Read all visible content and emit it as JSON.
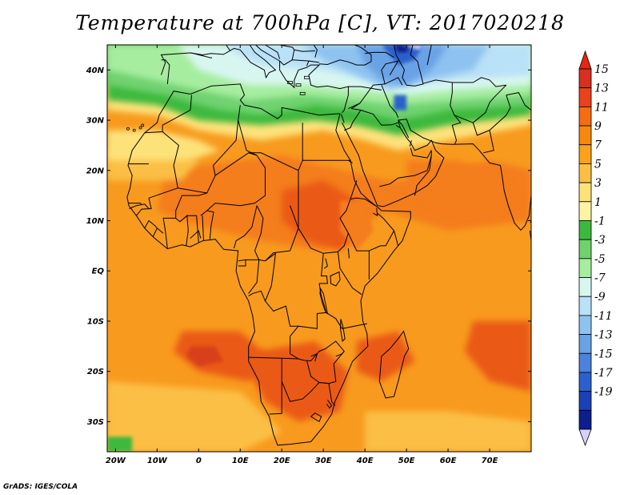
{
  "title": "Temperature at 700hPa [C], VT: 2017020218",
  "credit": "GrADS: IGES/COLA",
  "map": {
    "projection": "lat-lon",
    "lon_range": [
      -22,
      80
    ],
    "lat_range": [
      -36,
      45
    ],
    "lat_labels": [
      {
        "lat": 40,
        "text": "40N"
      },
      {
        "lat": 30,
        "text": "30N"
      },
      {
        "lat": 20,
        "text": "20N"
      },
      {
        "lat": 10,
        "text": "10N"
      },
      {
        "lat": 0,
        "text": "EQ"
      },
      {
        "lat": -10,
        "text": "10S"
      },
      {
        "lat": -20,
        "text": "20S"
      },
      {
        "lat": -30,
        "text": "30S"
      }
    ],
    "lon_labels": [
      {
        "lon": -20,
        "text": "20W"
      },
      {
        "lon": -10,
        "text": "10W"
      },
      {
        "lon": 0,
        "text": "0"
      },
      {
        "lon": 10,
        "text": "10E"
      },
      {
        "lon": 20,
        "text": "20E"
      },
      {
        "lon": 30,
        "text": "30E"
      },
      {
        "lon": 40,
        "text": "40E"
      },
      {
        "lon": 50,
        "text": "50E"
      },
      {
        "lon": 60,
        "text": "60E"
      },
      {
        "lon": 70,
        "text": "70E"
      }
    ]
  },
  "colorbar": {
    "labels": [
      "15",
      "13",
      "11",
      "9",
      "7",
      "5",
      "3",
      "1",
      "-1",
      "-3",
      "-5",
      "-7",
      "-9",
      "-11",
      "-13",
      "-15",
      "-17",
      "-19"
    ],
    "colors": [
      "#d7301f",
      "#e8431a",
      "#f46d13",
      "#f6880f",
      "#f9a21c",
      "#fbbf45",
      "#fde27a",
      "#fff3a6",
      "#3cb93c",
      "#6fd26f",
      "#a6eda0",
      "#d8f6f0",
      "#b9e1f7",
      "#8ec2f0",
      "#6aa2e6",
      "#4a82dc",
      "#2c60cc",
      "#1a40b8",
      "#0c1f8c"
    ],
    "max_arrow_color": "#e8260f",
    "min_arrow_color": "#d9d1f5"
  },
  "field_colors": {
    "ocean_base": "#f89a1e",
    "warm": "#f47d1a",
    "hot": "#ea5a16",
    "hottest": "#d8401a",
    "mild": "#fbbf45",
    "pale": "#fde27a",
    "green": "#3cb93c",
    "lightgreen": "#6fd26f",
    "palegreen": "#a6eda0",
    "cyanish": "#d8f6f0",
    "lightblue": "#b9e1f7",
    "blue": "#8ec2f0",
    "midblue": "#6aa2e6",
    "darkblue": "#2c60cc",
    "navy": "#0c1f8c",
    "purple": "#d9d1f5"
  }
}
